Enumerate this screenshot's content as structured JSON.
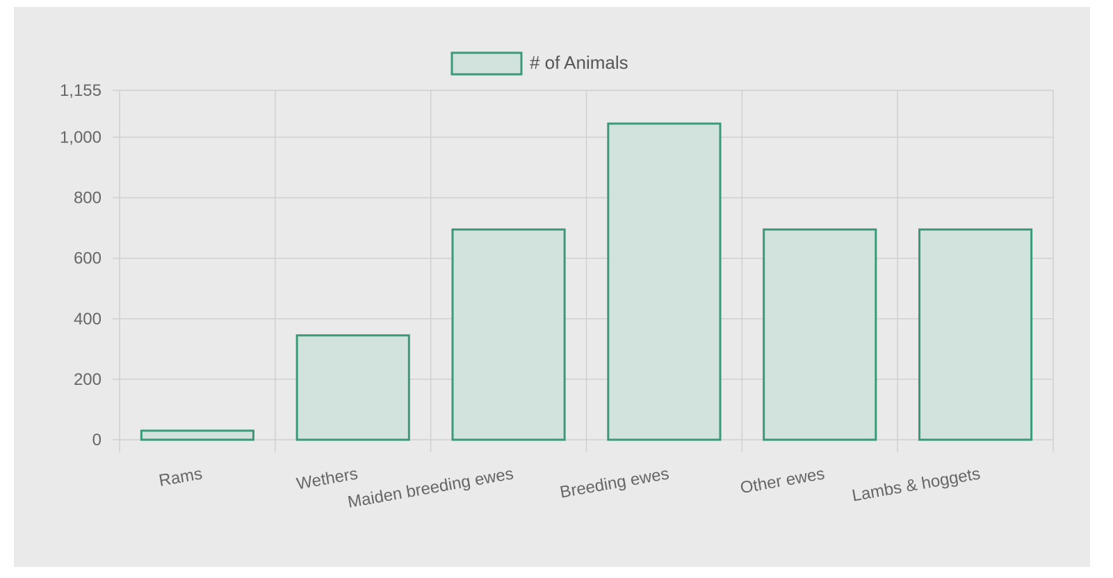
{
  "chart_data": {
    "type": "bar",
    "title": "",
    "xlabel": "",
    "ylabel": "",
    "categories": [
      "Rams",
      "Wethers",
      "Maiden breeding ewes",
      "Breeding ewes",
      "Other ewes",
      "Lambs & hoggets"
    ],
    "series": [
      {
        "name": "# of Animals",
        "values": [
          30,
          345,
          695,
          1045,
          695,
          695
        ]
      }
    ],
    "ylim": [
      0,
      1155
    ],
    "yticks": [
      0,
      200,
      400,
      600,
      800,
      1000,
      1155
    ],
    "ytick_labels": [
      "0",
      "200",
      "400",
      "600",
      "800",
      "1,000",
      "1,155"
    ],
    "grid": true,
    "legend_position": "top-center",
    "colors": {
      "bar_fill": "#d2e2dc",
      "bar_border": "#3a9a78",
      "grid": "#d0d0d0",
      "background": "#eaeaea"
    }
  }
}
